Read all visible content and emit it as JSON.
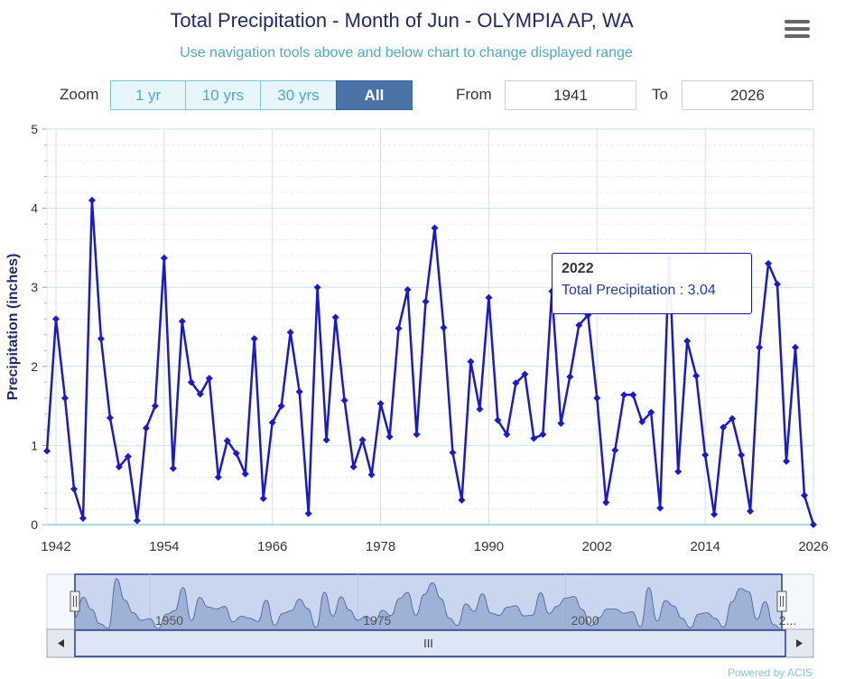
{
  "header": {
    "title": "Total Precipitation  - Month of Jun - OLYMPIA AP, WA",
    "subtitle": "Use navigation tools above and below chart to change displayed range",
    "menu_icon": "hamburger-menu-icon"
  },
  "controls": {
    "zoom_label": "Zoom",
    "zoom_buttons": [
      {
        "label": "1 yr",
        "active": false
      },
      {
        "label": "10 yrs",
        "active": false
      },
      {
        "label": "30 yrs",
        "active": false
      },
      {
        "label": "All",
        "active": true
      }
    ],
    "from_label": "From",
    "from_value": "1941",
    "to_label": "To",
    "to_value": "2026"
  },
  "tooltip": {
    "year": "2022",
    "text": "Total Precipitation : 3.04"
  },
  "navigator": {
    "labels": [
      "1950",
      "1975",
      "2000",
      "2..."
    ],
    "scrollbar_grip": "III",
    "left_arrow": "left-arrow-icon",
    "right_arrow": "right-arrow-icon"
  },
  "credits": "Powered by ACIS",
  "colors": {
    "series": "#1a1acc",
    "grid": "#c8e6f2",
    "navigator_fill": "#8fa5cf",
    "navigator_mask": "#c9d6ee"
  },
  "chart_data": {
    "type": "line",
    "title": "Total Precipitation  - Month of Jun - OLYMPIA AP, WA",
    "xlabel": "",
    "ylabel": "Precipitation (inches)",
    "xlim": [
      1941,
      2026
    ],
    "ylim": [
      0,
      5
    ],
    "xticks": [
      "1942",
      "1954",
      "1966",
      "1978",
      "1990",
      "2002",
      "2014",
      "2026"
    ],
    "yticks": [
      "0",
      "1",
      "2",
      "3",
      "4",
      "5"
    ],
    "grid": true,
    "series": [
      {
        "name": "Total Precipitation",
        "x": [
          1941,
          1942,
          1943,
          1944,
          1945,
          1946,
          1947,
          1948,
          1949,
          1950,
          1951,
          1952,
          1953,
          1954,
          1955,
          1956,
          1957,
          1958,
          1959,
          1960,
          1961,
          1962,
          1963,
          1964,
          1965,
          1966,
          1967,
          1968,
          1969,
          1970,
          1971,
          1972,
          1973,
          1974,
          1975,
          1976,
          1977,
          1978,
          1979,
          1980,
          1981,
          1982,
          1983,
          1984,
          1985,
          1986,
          1987,
          1988,
          1989,
          1990,
          1991,
          1992,
          1993,
          1994,
          1995,
          1996,
          1997,
          1998,
          1999,
          2000,
          2001,
          2002,
          2003,
          2004,
          2005,
          2006,
          2007,
          2008,
          2009,
          2010,
          2011,
          2012,
          2013,
          2014,
          2015,
          2016,
          2017,
          2018,
          2019,
          2020,
          2021,
          2022,
          2023,
          2024,
          2025,
          2026
        ],
        "values": [
          0.93,
          2.6,
          1.6,
          0.45,
          0.08,
          4.1,
          2.35,
          1.35,
          0.73,
          0.86,
          0.05,
          1.22,
          1.5,
          3.37,
          0.71,
          2.57,
          1.8,
          1.65,
          1.85,
          0.6,
          1.06,
          0.9,
          0.64,
          2.35,
          0.33,
          1.29,
          1.5,
          2.43,
          1.68,
          0.14,
          3.0,
          1.07,
          2.62,
          1.57,
          0.73,
          1.07,
          0.63,
          1.53,
          1.11,
          2.48,
          2.97,
          1.14,
          2.82,
          3.75,
          2.49,
          0.91,
          0.31,
          2.06,
          1.46,
          2.87,
          1.32,
          1.14,
          1.79,
          1.9,
          1.09,
          1.14,
          2.95,
          1.28,
          1.87,
          2.52,
          2.65,
          1.6,
          0.28,
          0.94,
          1.64,
          1.64,
          1.3,
          1.42,
          0.21,
          3.37,
          0.67,
          2.32,
          1.88,
          0.88,
          0.13,
          1.23,
          1.34,
          0.88,
          0.17,
          2.24,
          3.3,
          3.04,
          0.8,
          2.24,
          0.37,
          0.0
        ]
      }
    ],
    "navigator": {
      "range": [
        1941,
        2026
      ],
      "selected": [
        1941,
        2026
      ],
      "tick_labels": [
        "1950",
        "1975",
        "2000",
        "2..."
      ]
    }
  }
}
